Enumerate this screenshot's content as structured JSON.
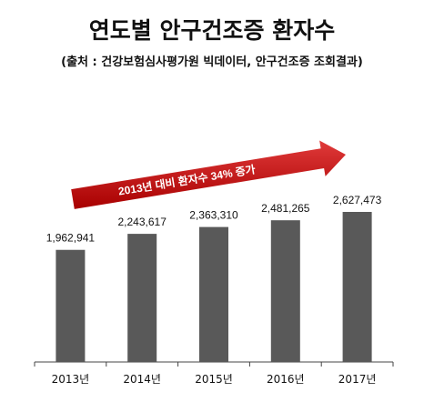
{
  "title": "연도별 안구건조증 환자수",
  "subtitle": "(출처 : 건강보험심사평가원 빅데이터, 안구건조증 조회결과)",
  "annotation": "2013년 대비 환자수 34% 증가",
  "chart_data": {
    "type": "bar",
    "categories": [
      "2013년",
      "2014년",
      "2015년",
      "2016년",
      "2017년"
    ],
    "values": [
      1962941,
      2243617,
      2363310,
      2481265,
      2627473
    ],
    "data_labels": [
      "1,962,941",
      "2,243,617",
      "2,363,310",
      "2,481,265",
      "2,627,473"
    ],
    "xlabel": "",
    "ylabel": "",
    "grid": false,
    "bar_color": "#595959",
    "arrow_color": "#c00000"
  }
}
